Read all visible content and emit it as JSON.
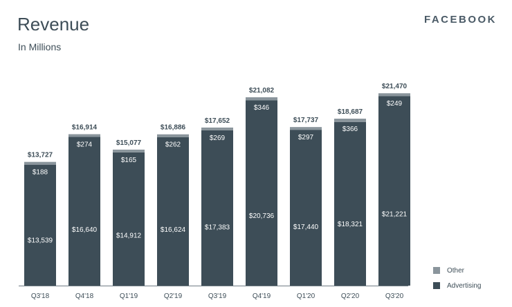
{
  "header": {
    "title": "Revenue",
    "subtitle": "In Millions",
    "brand": "FACEBOOK"
  },
  "colors": {
    "advertising": "#3d4d57",
    "other": "#8a959c",
    "text": "#3d4d57",
    "axis": "#6f7b83"
  },
  "chart_data": {
    "type": "bar",
    "stacked": true,
    "categories": [
      "Q3'18",
      "Q4'18",
      "Q1'19",
      "Q2'19",
      "Q3'19",
      "Q4'19",
      "Q1'20",
      "Q2'20",
      "Q3'20"
    ],
    "series": [
      {
        "name": "Advertising",
        "values": [
          13539,
          16640,
          14912,
          16624,
          17383,
          20736,
          17440,
          18321,
          21221
        ]
      },
      {
        "name": "Other",
        "values": [
          188,
          274,
          165,
          262,
          269,
          346,
          297,
          366,
          249
        ]
      }
    ],
    "totals": [
      13727,
      16914,
      15077,
      16886,
      17652,
      21082,
      17737,
      18687,
      21470
    ],
    "value_labels": {
      "advertising": [
        "$13,539",
        "$16,640",
        "$14,912",
        "$16,624",
        "$17,383",
        "$20,736",
        "$17,440",
        "$18,321",
        "$21,221"
      ],
      "other": [
        "$188",
        "$274",
        "$165",
        "$262",
        "$269",
        "$346",
        "$297",
        "$366",
        "$249"
      ],
      "totals": [
        "$13,727",
        "$16,914",
        "$15,077",
        "$16,886",
        "$17,652",
        "$21,082",
        "$17,737",
        "$18,687",
        "$21,470"
      ]
    },
    "ylim": [
      0,
      22000
    ],
    "grid": false,
    "legend": "bottom-right"
  },
  "legend": {
    "other": "Other",
    "advertising": "Advertising"
  }
}
